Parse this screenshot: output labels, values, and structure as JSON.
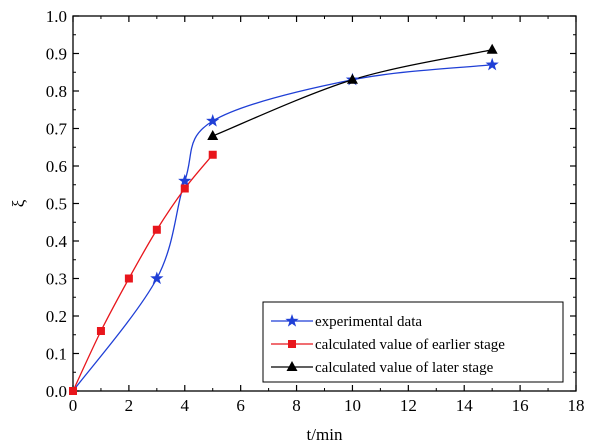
{
  "chart_data": {
    "type": "line",
    "xlabel": "t/min",
    "ylabel": "ξ",
    "xlim": [
      0,
      18
    ],
    "ylim": [
      0.0,
      1.0
    ],
    "x_ticks": [
      "0",
      "2",
      "4",
      "6",
      "8",
      "10",
      "12",
      "14",
      "16",
      "18"
    ],
    "y_ticks": [
      "0.0",
      "0.1",
      "0.2",
      "0.3",
      "0.4",
      "0.5",
      "0.6",
      "0.7",
      "0.8",
      "0.9",
      "1.0"
    ],
    "grid": false,
    "legend_position": "bottom-right",
    "series": [
      {
        "name": "experimental data",
        "marker": "star",
        "color": "#1f3fd6",
        "x": [
          0,
          3,
          4,
          5,
          10,
          15
        ],
        "y": [
          0.0,
          0.3,
          0.56,
          0.72,
          0.83,
          0.87
        ]
      },
      {
        "name": "calculated value of earlier stage",
        "marker": "square",
        "color": "#e8161c",
        "x": [
          0,
          1,
          2,
          3,
          4,
          5
        ],
        "y": [
          0.0,
          0.16,
          0.3,
          0.43,
          0.54,
          0.63
        ]
      },
      {
        "name": "calculated value of later stage",
        "marker": "triangle",
        "color": "#000000",
        "x": [
          5,
          10,
          15
        ],
        "y": [
          0.68,
          0.83,
          0.91
        ]
      }
    ]
  }
}
